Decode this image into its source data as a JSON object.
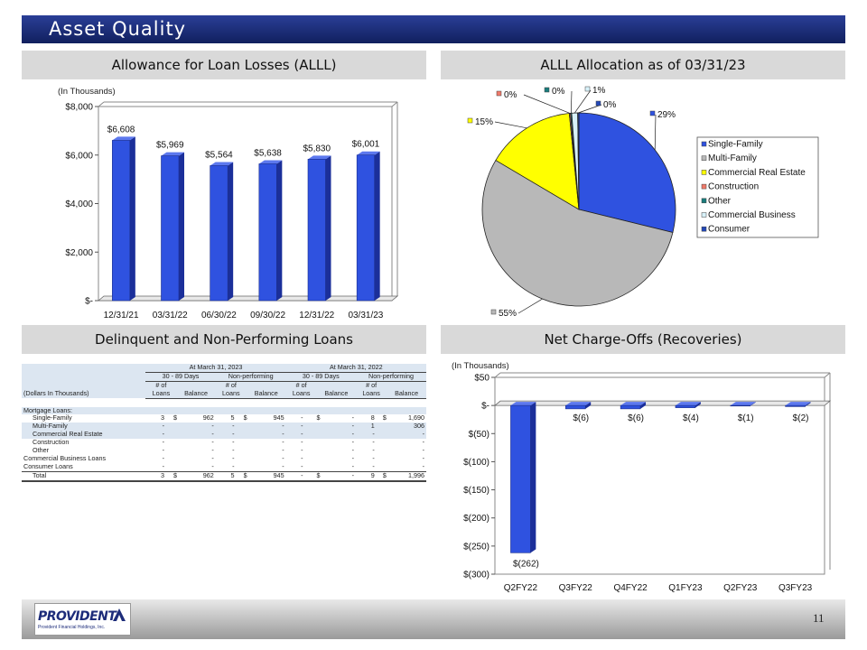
{
  "header": {
    "title": "Asset Quality"
  },
  "sections": {
    "alll": "Allowance for Loan Losses (ALLL)",
    "allocation": "ALLL Allocation as of 03/31/23",
    "delinquent": "Delinquent and Non-Performing Loans",
    "chargeoffs": "Net Charge-Offs (Recoveries)"
  },
  "footer": {
    "logo_word": "PROVIDENT",
    "logo_sub": "Provident Financial Holdings, Inc.",
    "page_number": "11"
  },
  "colors": {
    "bar_blue": "#2f52e0",
    "bar_side": "#1b2f9a",
    "title_bar": "#1b2a77",
    "section_bg": "#d9d9d9"
  },
  "chart_data": [
    {
      "type": "bar",
      "title": "Allowance for Loan Losses (ALLL)",
      "unit_note": "(In Thousands)",
      "categories": [
        "12/31/21",
        "03/31/22",
        "06/30/22",
        "09/30/22",
        "12/31/22",
        "03/31/23"
      ],
      "values": [
        6608,
        5969,
        5564,
        5638,
        5830,
        6001
      ],
      "data_labels": [
        "$6,608",
        "$5,969",
        "$5,564",
        "$5,638",
        "$5,830",
        "$6,001"
      ],
      "ylim": [
        0,
        8000
      ],
      "yticks": [
        0,
        2000,
        4000,
        6000,
        8000
      ],
      "ytick_labels": [
        "$-",
        "$2,000",
        "$4,000",
        "$6,000",
        "$8,000"
      ],
      "grid": false
    },
    {
      "type": "pie",
      "title": "ALLL Allocation as of 03/31/23",
      "slices": [
        {
          "name": "Single-Family",
          "value": 29,
          "label": "29%",
          "color": "#2f52e0"
        },
        {
          "name": "Multi-Family",
          "value": 55,
          "label": "55%",
          "color": "#b8b8b8"
        },
        {
          "name": "Commercial Real Estate",
          "value": 15,
          "label": "15%",
          "color": "#ffff00"
        },
        {
          "name": "Construction",
          "value": 0.2,
          "label": "0%",
          "color": "#f07a6a"
        },
        {
          "name": "Other",
          "value": 0.2,
          "label": "0%",
          "color": "#1a7d7d"
        },
        {
          "name": "Commercial Business",
          "value": 1,
          "label": "1%",
          "color": "#d8f2fa"
        },
        {
          "name": "Consumer",
          "value": 0.2,
          "label": "0%",
          "color": "#2348b8"
        }
      ],
      "legend_position": "right"
    },
    {
      "type": "table",
      "title": "Delinquent and Non-Performing Loans",
      "period_headers": [
        "At March 31, 2023",
        "At March 31, 2022"
      ],
      "group_headers": [
        "30 - 89 Days",
        "Non-performing",
        "30 - 89 Days",
        "Non-performing"
      ],
      "col_top": [
        "# of",
        "",
        "# of",
        "",
        "# of",
        "",
        "# of",
        ""
      ],
      "col_bottom": [
        "Loans",
        "Balance",
        "Loans",
        "Balance",
        "Loans",
        "Balance",
        "Loans",
        "Balance"
      ],
      "row_header_label": "(Dollars In Thousands)",
      "rows": [
        {
          "label": "Mortgage Loans:",
          "cells": [
            "",
            "",
            "",
            "",
            "",
            "",
            "",
            "",
            "",
            "",
            "",
            ""
          ],
          "kind": "group"
        },
        {
          "label": "Single-Family",
          "cells": [
            "3",
            "$",
            "962",
            "5",
            "$",
            "945",
            "-",
            "$",
            "-",
            "8",
            "$",
            "1,690"
          ],
          "kind": "sub"
        },
        {
          "label": "Multi-Family",
          "cells": [
            "-",
            "",
            "-",
            "-",
            "",
            "-",
            "-",
            "",
            "-",
            "1",
            "",
            "306"
          ],
          "kind": "sub"
        },
        {
          "label": "Commercial Real Estate",
          "cells": [
            "-",
            "",
            "-",
            "-",
            "",
            "-",
            "-",
            "",
            "-",
            "-",
            "",
            "-"
          ],
          "kind": "sub"
        },
        {
          "label": "Construction",
          "cells": [
            "-",
            "",
            "-",
            "-",
            "",
            "-",
            "-",
            "",
            "-",
            "-",
            "",
            "-"
          ],
          "kind": "sub"
        },
        {
          "label": "Other",
          "cells": [
            "-",
            "",
            "-",
            "-",
            "",
            "-",
            "-",
            "",
            "-",
            "-",
            "",
            "-"
          ],
          "kind": "sub"
        },
        {
          "label": "Commercial Business Loans",
          "cells": [
            "-",
            "",
            "-",
            "-",
            "",
            "-",
            "-",
            "",
            "-",
            "-",
            "",
            "-"
          ],
          "kind": "plain"
        },
        {
          "label": "Consumer Loans",
          "cells": [
            "-",
            "",
            "-",
            "-",
            "",
            "-",
            "-",
            "",
            "-",
            "-",
            "",
            "-"
          ],
          "kind": "plain"
        },
        {
          "label": "Total",
          "cells": [
            "3",
            "$",
            "962",
            "5",
            "$",
            "945",
            "-",
            "$",
            "-",
            "9",
            "$",
            "1,996"
          ],
          "kind": "total"
        }
      ]
    },
    {
      "type": "bar",
      "title": "Net Charge-Offs (Recoveries)",
      "unit_note": "(In Thousands)",
      "categories": [
        "Q2FY22",
        "Q3FY22",
        "Q4FY22",
        "Q1FY23",
        "Q2FY23",
        "Q3FY23"
      ],
      "values": [
        -262,
        -6,
        -6,
        -4,
        -1,
        -2
      ],
      "data_labels": [
        "$(262)",
        "$(6)",
        "$(6)",
        "$(4)",
        "$(1)",
        "$(2)"
      ],
      "ylim": [
        -300,
        50
      ],
      "yticks": [
        -300,
        -250,
        -200,
        -150,
        -100,
        -50,
        0,
        50
      ],
      "ytick_labels": [
        "$(300)",
        "$(250)",
        "$(200)",
        "$(150)",
        "$(100)",
        "$(50)",
        "$-",
        "$50"
      ],
      "grid": false
    }
  ]
}
